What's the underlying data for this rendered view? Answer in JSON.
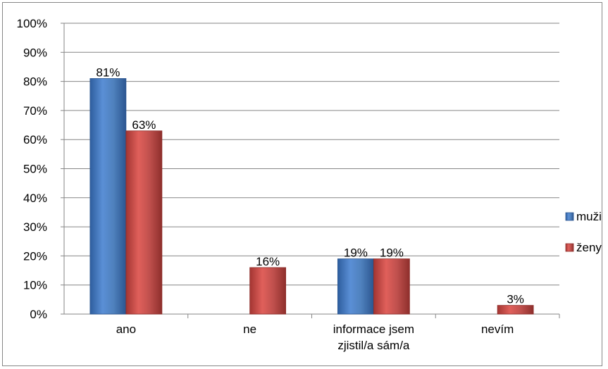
{
  "chart_data": {
    "type": "bar",
    "categories": [
      "ano",
      "ne",
      "informace jsem zjistil/a sám/a",
      "nevím"
    ],
    "category_lines": [
      [
        "ano"
      ],
      [
        "ne"
      ],
      [
        "informace jsem",
        "zjistil/a sám/a"
      ],
      [
        "nevím"
      ]
    ],
    "series": [
      {
        "name": "muži",
        "values": [
          81,
          null,
          19,
          null
        ],
        "labels": [
          "81%",
          "",
          "19%",
          ""
        ],
        "color": "#4F81BD"
      },
      {
        "name": "ženy",
        "values": [
          63,
          16,
          19,
          3
        ],
        "labels": [
          "63%",
          "16%",
          "19%",
          "3%"
        ],
        "color": "#C0504D"
      }
    ],
    "y_ticks": [
      "0%",
      "10%",
      "20%",
      "30%",
      "40%",
      "50%",
      "60%",
      "70%",
      "80%",
      "90%",
      "100%"
    ],
    "ylim": [
      0,
      100
    ],
    "grid": true,
    "legend": "right",
    "title": "",
    "xlabel": "",
    "ylabel": ""
  }
}
